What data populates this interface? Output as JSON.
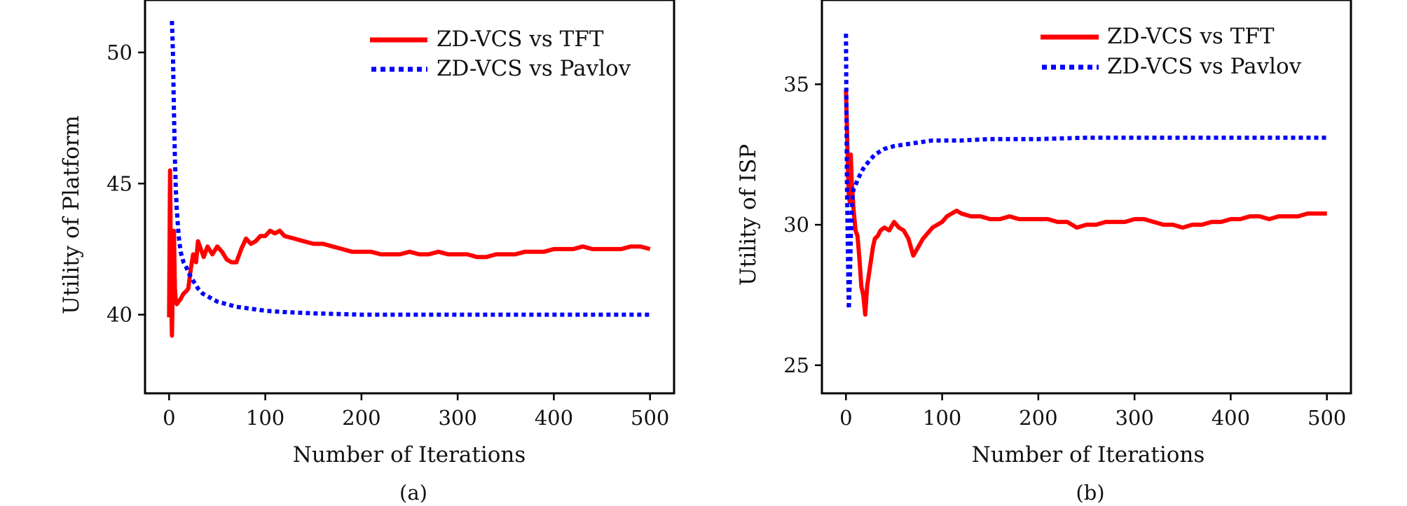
{
  "chart_data": [
    {
      "type": "line",
      "caption": "(a)",
      "xlabel": "Number of Iterations",
      "ylabel": "Utility of Platform",
      "xlim": [
        -25,
        525
      ],
      "ylim": [
        37,
        52
      ],
      "xticks": [
        0,
        100,
        200,
        300,
        400,
        500
      ],
      "yticks": [
        40,
        45,
        50
      ],
      "grid": false,
      "legend": "top-right",
      "series": [
        {
          "name": "ZD-VCS vs TFT",
          "color": "#ff0000",
          "style": "solid",
          "x": [
            0,
            1,
            2,
            3,
            4,
            5,
            6,
            7,
            8,
            10,
            12,
            15,
            18,
            20,
            22,
            25,
            28,
            30,
            33,
            36,
            40,
            45,
            50,
            55,
            60,
            65,
            70,
            75,
            80,
            85,
            90,
            95,
            100,
            105,
            110,
            115,
            120,
            130,
            140,
            150,
            160,
            170,
            180,
            190,
            200,
            210,
            220,
            230,
            240,
            250,
            260,
            270,
            280,
            290,
            300,
            310,
            320,
            330,
            340,
            350,
            360,
            370,
            380,
            390,
            400,
            410,
            420,
            430,
            440,
            450,
            460,
            470,
            480,
            490,
            500
          ],
          "values": [
            39.9,
            45.5,
            41.0,
            39.2,
            41.5,
            43.2,
            41.0,
            40.5,
            40.4,
            40.5,
            40.6,
            40.8,
            40.9,
            41.0,
            41.6,
            42.3,
            42.0,
            42.8,
            42.5,
            42.2,
            42.6,
            42.3,
            42.6,
            42.4,
            42.1,
            42.0,
            42.0,
            42.5,
            42.9,
            42.7,
            42.8,
            43.0,
            43.0,
            43.2,
            43.1,
            43.2,
            43.0,
            42.9,
            42.8,
            42.7,
            42.7,
            42.6,
            42.5,
            42.4,
            42.4,
            42.4,
            42.3,
            42.3,
            42.3,
            42.4,
            42.3,
            42.3,
            42.4,
            42.3,
            42.3,
            42.3,
            42.2,
            42.2,
            42.3,
            42.3,
            42.3,
            42.4,
            42.4,
            42.4,
            42.5,
            42.5,
            42.5,
            42.6,
            42.5,
            42.5,
            42.5,
            42.5,
            42.6,
            42.6,
            42.5
          ]
        },
        {
          "name": "ZD-VCS vs Pavlov",
          "color": "#0000ff",
          "style": "dotted",
          "x": [
            3,
            4,
            5,
            6,
            7,
            8,
            10,
            12,
            15,
            18,
            20,
            25,
            30,
            35,
            40,
            50,
            60,
            70,
            80,
            90,
            100,
            120,
            150,
            200,
            250,
            300,
            350,
            400,
            450,
            500
          ],
          "values": [
            51.2,
            50.0,
            47.8,
            46.0,
            44.8,
            44.0,
            43.0,
            42.4,
            42.0,
            41.8,
            41.6,
            41.3,
            41.0,
            40.8,
            40.7,
            40.5,
            40.4,
            40.3,
            40.25,
            40.2,
            40.15,
            40.1,
            40.05,
            40.0,
            40.0,
            40.0,
            40.0,
            40.0,
            40.0,
            40.0
          ]
        }
      ]
    },
    {
      "type": "line",
      "caption": "(b)",
      "xlabel": "Number of Iterations",
      "ylabel": "Utility of ISP",
      "xlim": [
        -25,
        525
      ],
      "ylim": [
        24,
        38
      ],
      "xticks": [
        0,
        100,
        200,
        300,
        400,
        500
      ],
      "yticks": [
        25,
        30,
        35
      ],
      "grid": false,
      "legend": "top-right",
      "series": [
        {
          "name": "ZD-VCS vs TFT",
          "color": "#ff0000",
          "style": "solid",
          "x": [
            0,
            1,
            2,
            3,
            4,
            5,
            6,
            8,
            10,
            12,
            14,
            16,
            18,
            20,
            22,
            25,
            28,
            30,
            33,
            36,
            40,
            45,
            50,
            55,
            60,
            65,
            70,
            75,
            80,
            90,
            100,
            105,
            110,
            115,
            120,
            130,
            140,
            150,
            160,
            170,
            180,
            190,
            200,
            210,
            220,
            230,
            240,
            250,
            260,
            270,
            280,
            290,
            300,
            310,
            320,
            330,
            340,
            350,
            360,
            370,
            380,
            390,
            400,
            410,
            420,
            430,
            440,
            450,
            460,
            470,
            480,
            490,
            500
          ],
          "values": [
            34.8,
            33.5,
            32.0,
            31.0,
            30.8,
            32.5,
            31.5,
            30.5,
            29.8,
            29.6,
            28.8,
            27.8,
            27.5,
            26.8,
            27.8,
            28.5,
            29.2,
            29.5,
            29.6,
            29.8,
            29.9,
            29.8,
            30.1,
            29.9,
            29.8,
            29.5,
            28.9,
            29.2,
            29.5,
            29.9,
            30.1,
            30.3,
            30.4,
            30.5,
            30.4,
            30.3,
            30.3,
            30.2,
            30.2,
            30.3,
            30.2,
            30.2,
            30.2,
            30.2,
            30.1,
            30.1,
            29.9,
            30.0,
            30.0,
            30.1,
            30.1,
            30.1,
            30.2,
            30.2,
            30.1,
            30.0,
            30.0,
            29.9,
            30.0,
            30.0,
            30.1,
            30.1,
            30.2,
            30.2,
            30.3,
            30.3,
            30.2,
            30.3,
            30.3,
            30.3,
            30.4,
            30.4,
            30.4
          ]
        },
        {
          "name": "ZD-VCS vs Pavlov",
          "color": "#0000ff",
          "style": "dotted",
          "x": [
            0,
            1,
            2,
            3,
            4,
            5,
            6,
            7,
            8,
            10,
            12,
            15,
            18,
            20,
            25,
            30,
            35,
            40,
            50,
            60,
            70,
            80,
            90,
            100,
            120,
            150,
            200,
            250,
            300,
            350,
            400,
            450,
            500
          ],
          "values": [
            36.8,
            31.5,
            29.0,
            27.0,
            28.0,
            29.5,
            30.5,
            31.0,
            31.3,
            31.4,
            31.6,
            31.8,
            32.0,
            32.1,
            32.3,
            32.5,
            32.6,
            32.7,
            32.8,
            32.85,
            32.9,
            32.95,
            33.0,
            33.0,
            33.0,
            33.05,
            33.05,
            33.1,
            33.1,
            33.1,
            33.1,
            33.1,
            33.1
          ]
        }
      ]
    }
  ]
}
